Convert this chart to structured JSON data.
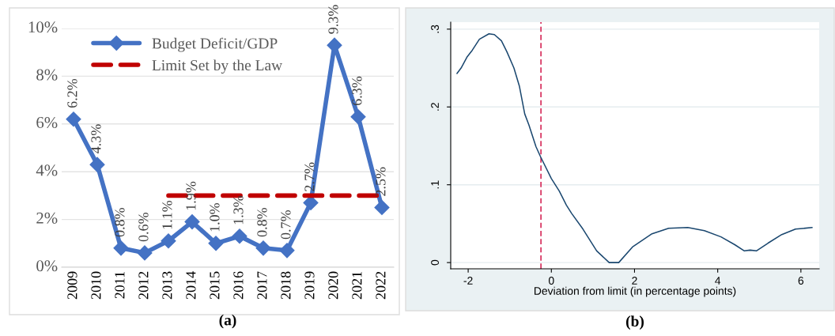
{
  "chart_data": [
    {
      "type": "line",
      "title": "(a)",
      "categories": [
        "2009",
        "2010",
        "2011",
        "2012",
        "2013",
        "2014",
        "2015",
        "2016",
        "2017",
        "2018",
        "2019",
        "2020",
        "2021",
        "2022"
      ],
      "series": [
        {
          "name": "Budget Deficit/GDP",
          "color": "#4472c4",
          "marker": "diamond",
          "line_style": "solid",
          "values": [
            6.2,
            4.3,
            0.8,
            0.6,
            1.1,
            1.9,
            1.0,
            1.3,
            0.8,
            0.7,
            2.7,
            9.3,
            6.3,
            2.5
          ],
          "value_labels": [
            "6.2%",
            "4.3%",
            "0.8%",
            "0.6%",
            "1.1%",
            "1.9%",
            "1.0%",
            "1.3%",
            "0.8%",
            "0.7%",
            "2.7%",
            "9.3%",
            "6.3%",
            "2.5%"
          ]
        },
        {
          "name": "Limit Set by the Law",
          "color": "#c00000",
          "marker": "none",
          "line_style": "dashed",
          "values": [
            null,
            null,
            null,
            null,
            3,
            3,
            3,
            3,
            3,
            3,
            3,
            3,
            3,
            3
          ]
        }
      ],
      "ylim": [
        0,
        10
      ],
      "yticks": [
        {
          "value": 0,
          "label": "0%"
        },
        {
          "value": 2,
          "label": "2%"
        },
        {
          "value": 4,
          "label": "4%"
        },
        {
          "value": 6,
          "label": "6%"
        },
        {
          "value": 8,
          "label": "8%"
        },
        {
          "value": 10,
          "label": "10%"
        }
      ],
      "grid": "y",
      "legend": "top"
    },
    {
      "type": "line",
      "title": "(b)",
      "xlabel": "Deviation from limit (in percentage points)",
      "series": [
        {
          "color": "#1a476f",
          "marker": "none",
          "line_style": "solid",
          "x": [
            -2.27,
            -2.17,
            -2.03,
            -1.9,
            -1.73,
            -1.5,
            -1.37,
            -1.2,
            -1.07,
            -0.9,
            -0.77,
            -0.64,
            -0.54,
            -0.37,
            -0.26,
            0,
            0.19,
            0.36,
            0.49,
            0.76,
            1.09,
            1.39,
            1.62,
            1.95,
            2.42,
            2.82,
            3.28,
            3.68,
            4.08,
            4.41,
            4.64,
            4.78,
            4.93,
            5.21,
            5.54,
            5.87,
            6.27
          ],
          "values": [
            0.243,
            0.25,
            0.264,
            0.273,
            0.287,
            0.294,
            0.293,
            0.285,
            0.271,
            0.25,
            0.227,
            0.191,
            0.177,
            0.149,
            0.136,
            0.108,
            0.092,
            0.074,
            0.063,
            0.043,
            0.015,
            0,
            0,
            0.02,
            0.037,
            0.044,
            0.045,
            0.041,
            0.033,
            0.023,
            0.015,
            0.016,
            0.015,
            0.025,
            0.036,
            0.043,
            0.045
          ]
        }
      ],
      "xlim": [
        -2.42,
        6.44
      ],
      "ylim": [
        -0.008,
        0.309
      ],
      "xticks": [
        -2,
        0,
        2,
        4,
        6
      ],
      "yticks": [
        0,
        {
          "value": 0.1,
          "label": ".1"
        },
        {
          "value": 0.2,
          "label": ".2"
        },
        {
          "value": 0.3,
          "label": ".3"
        }
      ],
      "ref_lines": [
        {
          "axis": "x",
          "value": -0.25,
          "color": "#d62d5b",
          "line_style": "dashed"
        }
      ],
      "grid": "y"
    }
  ]
}
